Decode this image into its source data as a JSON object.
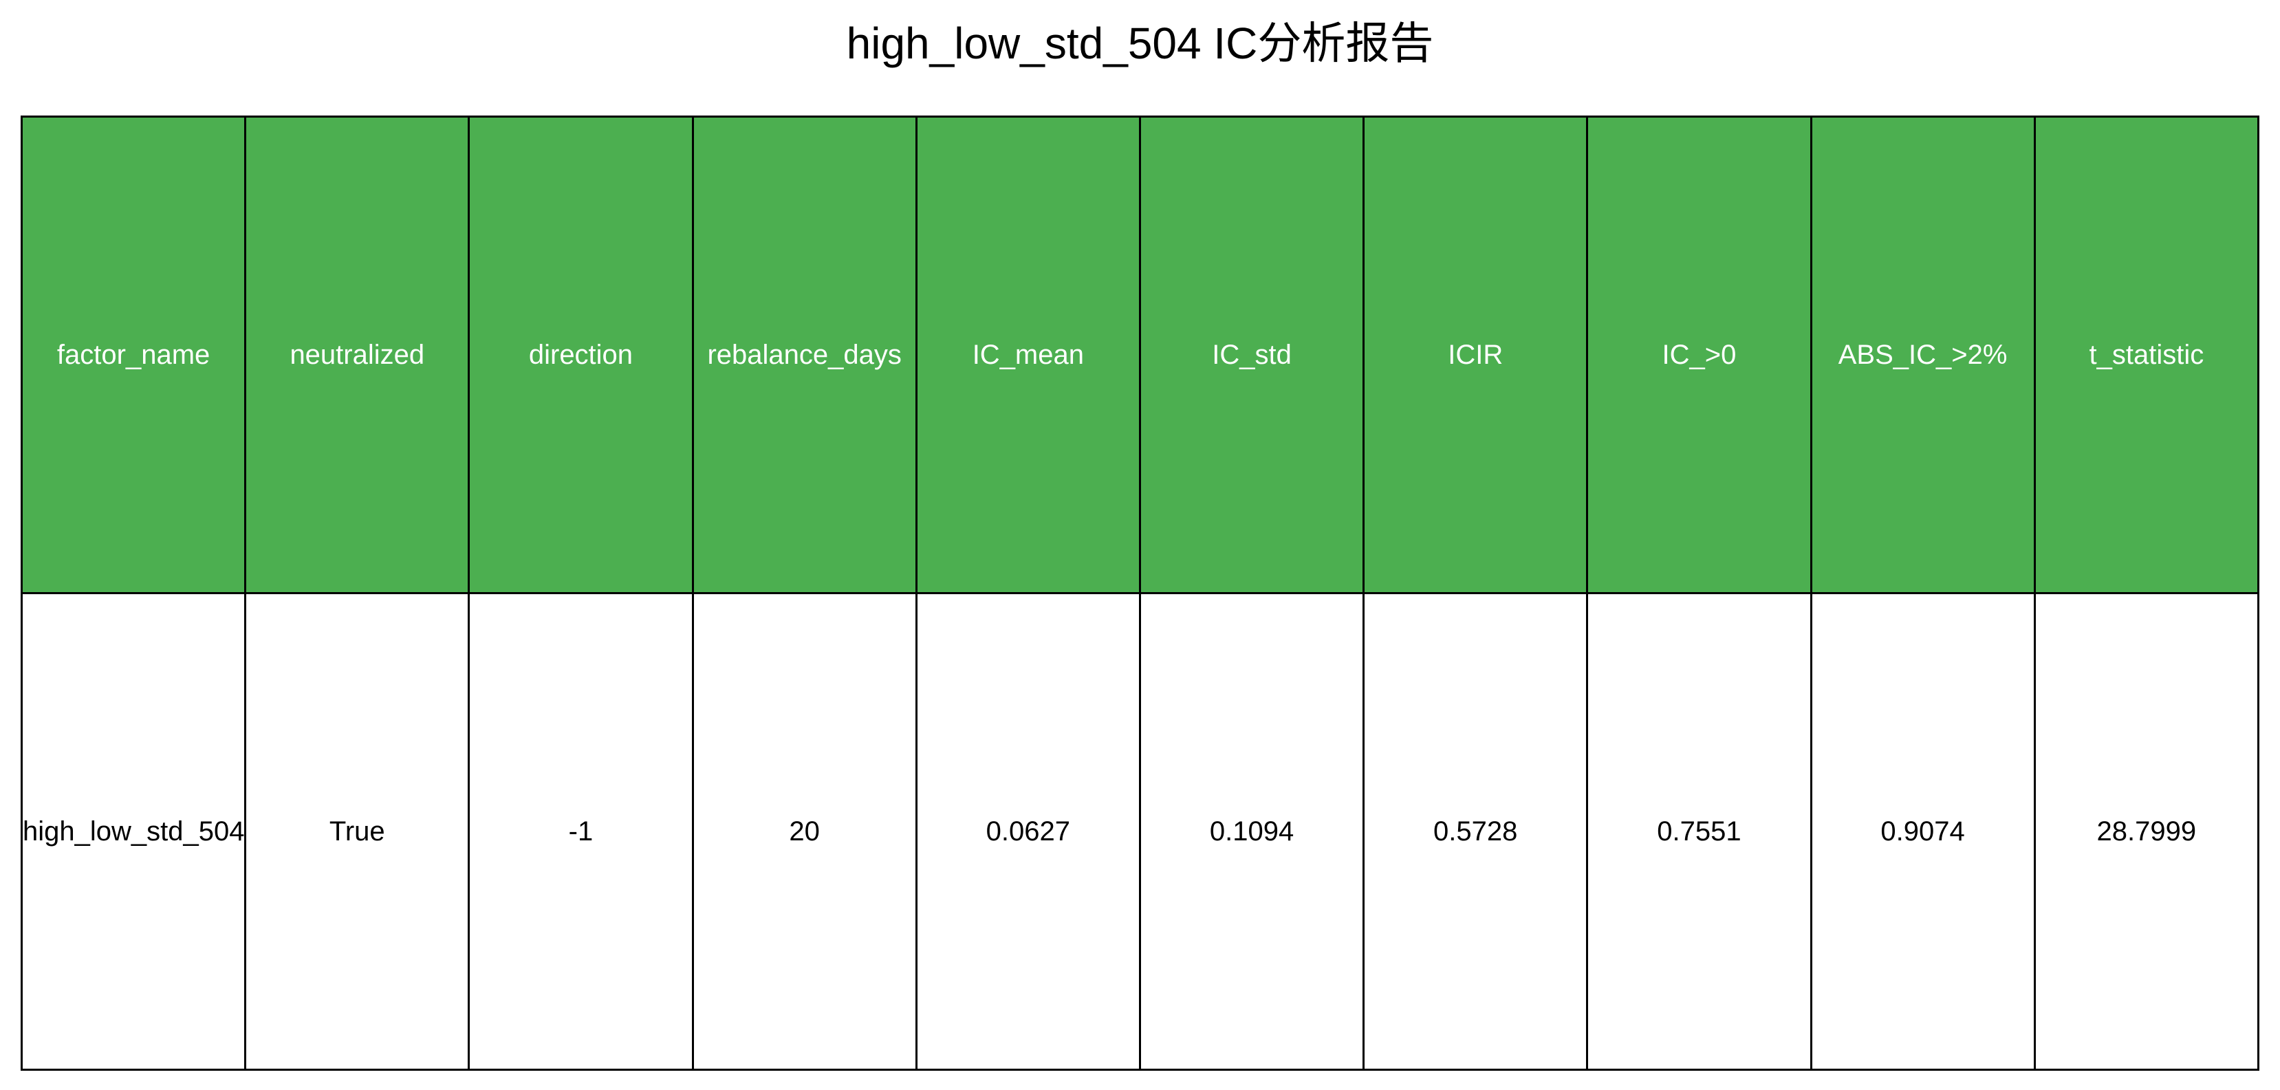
{
  "chart_data": {
    "type": "table",
    "title": "high_low_std_504 IC分析报告",
    "header_color": "#4caf50",
    "header_text_color": "#ffffff",
    "columns": [
      "factor_name",
      "neutralized",
      "direction",
      "rebalance_days",
      "IC_mean",
      "IC_std",
      "ICIR",
      "IC_>0",
      "ABS_IC_>2%",
      "t_statistic"
    ],
    "rows": [
      [
        "high_low_std_504",
        "True",
        "-1",
        "20",
        "0.0627",
        "0.1094",
        "0.5728",
        "0.7551",
        "0.9074",
        "28.7999"
      ]
    ]
  }
}
